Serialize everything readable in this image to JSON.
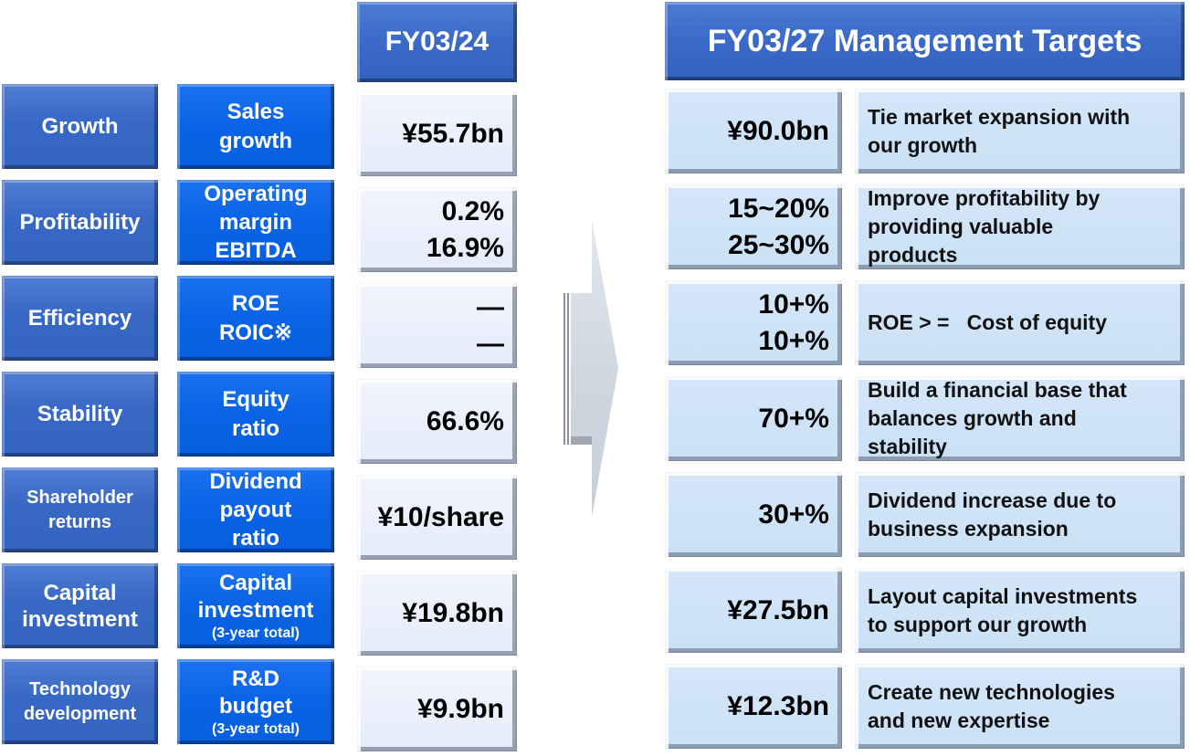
{
  "header": {
    "current_year": "FY03/24",
    "target_title": "FY03/27 Management Targets"
  },
  "rows": [
    {
      "category": [
        "Growth"
      ],
      "metric": [
        "Sales",
        "growth"
      ],
      "metric_note": "",
      "current": [
        "¥55.7bn"
      ],
      "target": [
        "¥90.0bn"
      ],
      "description": [
        "Tie market expansion with",
        "our growth"
      ]
    },
    {
      "category": [
        "Profitability"
      ],
      "metric": [
        "Operating",
        "margin",
        "EBITDA"
      ],
      "metric_note": "",
      "current": [
        "0.2%",
        "16.9%"
      ],
      "target": [
        "15~20%",
        "25~30%"
      ],
      "description": [
        "Improve profitability by",
        "providing valuable",
        "products"
      ]
    },
    {
      "category": [
        "Efficiency"
      ],
      "metric": [
        "ROE",
        "ROIC※"
      ],
      "metric_note": "",
      "current": [
        "—",
        "—"
      ],
      "target": [
        "10+%",
        "10+%"
      ],
      "description": [
        "ROE > =   Cost of equity"
      ]
    },
    {
      "category": [
        "Stability"
      ],
      "metric": [
        "Equity",
        "ratio"
      ],
      "metric_note": "",
      "current": [
        "66.6%"
      ],
      "target": [
        "70+%"
      ],
      "description": [
        "Build a financial base that",
        "balances growth and",
        "stability"
      ]
    },
    {
      "category": [
        "Shareholder",
        "returns"
      ],
      "metric": [
        "Dividend",
        "payout",
        "ratio"
      ],
      "metric_note": "",
      "current": [
        "¥10/share"
      ],
      "target": [
        "30+%"
      ],
      "description": [
        "Dividend increase due to",
        "business expansion"
      ]
    },
    {
      "category": [
        "Capital",
        "investment"
      ],
      "metric": [
        "Capital",
        "investment"
      ],
      "metric_note": "(3-year total)",
      "current": [
        "¥19.8bn"
      ],
      "target": [
        "¥27.5bn"
      ],
      "description": [
        "Layout capital investments",
        "to support our growth"
      ]
    },
    {
      "category": [
        "Technology",
        "development"
      ],
      "metric": [
        "R&D",
        "budget"
      ],
      "metric_note": "(3-year total)",
      "current": [
        "¥9.9bn"
      ],
      "target": [
        "¥12.3bn"
      ],
      "description": [
        "Create new technologies",
        "and new expertise"
      ]
    }
  ],
  "arrow": {
    "icon": "right-arrow-icon",
    "color": "#cdd4de"
  },
  "colors": {
    "category_blue": "#3868c6",
    "metric_blue": "#0a63e6",
    "header_blue": "#3a69c7",
    "current_fill": "#e8eefb",
    "target_fill": "#cce2f7"
  }
}
